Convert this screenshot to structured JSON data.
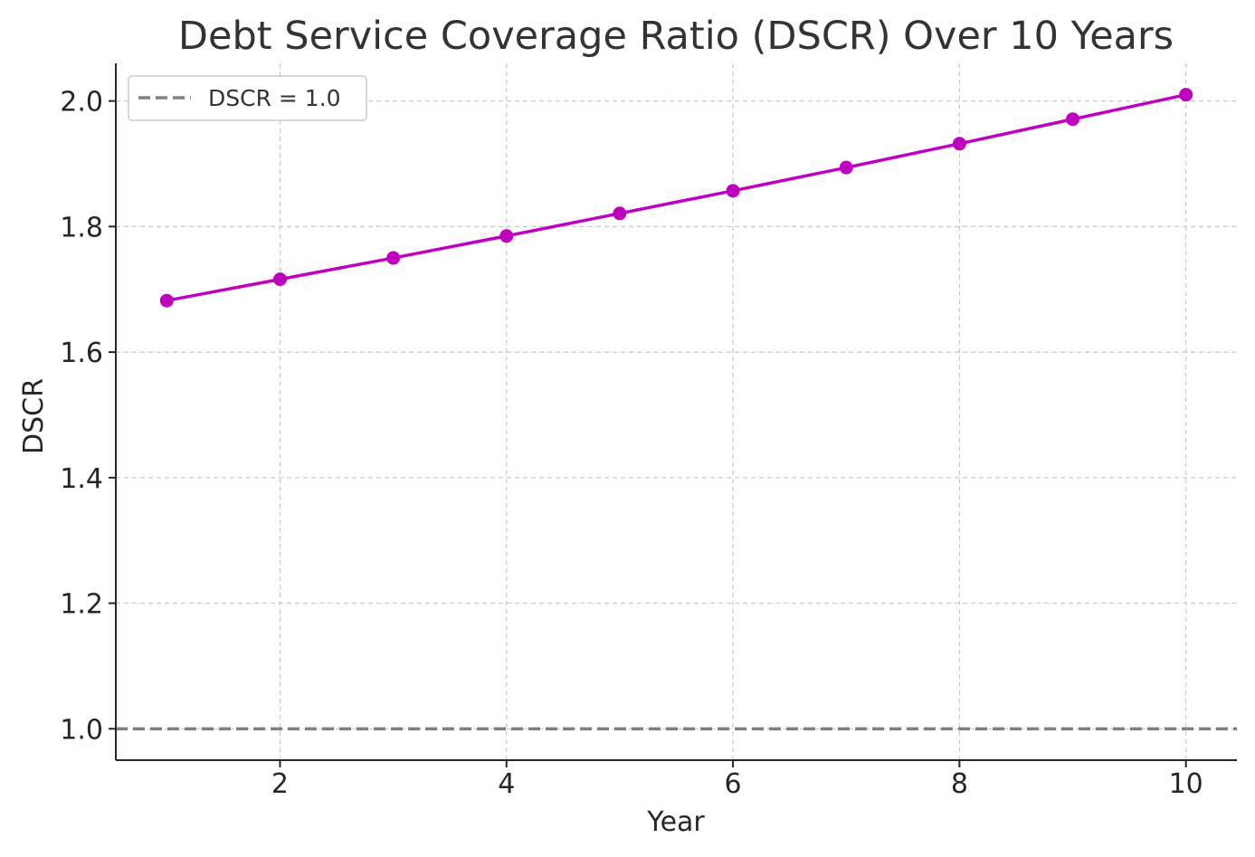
{
  "chart_data": {
    "type": "line",
    "title": "Debt Service Coverage Ratio (DSCR) Over 10 Years",
    "xlabel": "Year",
    "ylabel": "DSCR",
    "x": [
      1,
      2,
      3,
      4,
      5,
      6,
      7,
      8,
      9,
      10
    ],
    "series": [
      {
        "values": [
          1.682,
          1.716,
          1.75,
          1.785,
          1.821,
          1.857,
          1.894,
          1.932,
          1.971,
          2.01
        ],
        "color": "#bf00bf",
        "marker": "circle"
      }
    ],
    "reference_lines": [
      {
        "label": "DSCR = 1.0",
        "y": 1.0,
        "color": "#808080",
        "style": "dashed"
      }
    ],
    "xlim": [
      0.55,
      10.45
    ],
    "ylim": [
      0.95,
      2.06
    ],
    "xticks": [
      "2",
      "4",
      "6",
      "8",
      "10"
    ],
    "xtick_values": [
      2,
      4,
      6,
      8,
      10
    ],
    "yticks": [
      "1.0",
      "1.2",
      "1.4",
      "1.6",
      "1.8",
      "2.0"
    ],
    "ytick_values": [
      1.0,
      1.2,
      1.4,
      1.6,
      1.8,
      2.0
    ],
    "grid": true,
    "legend_position": "top-left"
  }
}
